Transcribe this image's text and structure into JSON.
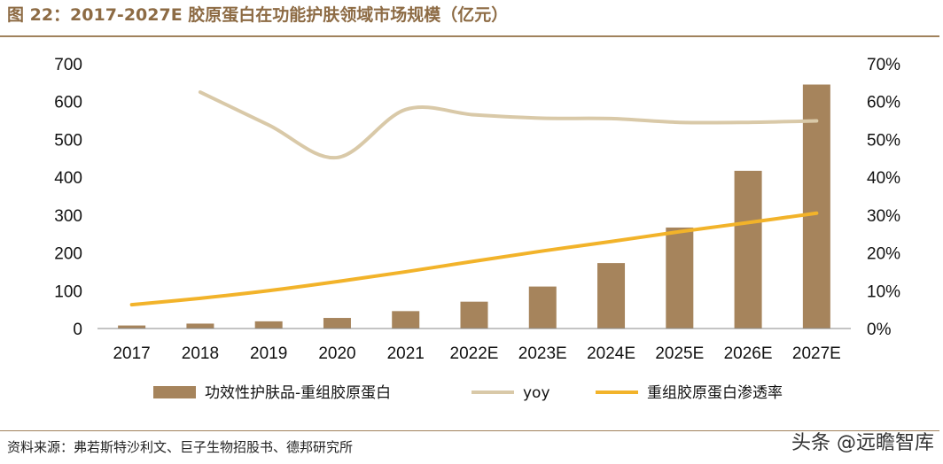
{
  "header": {
    "title": "图 22：2017-2027E 胶原蛋白在功能护肤领域市场规模（亿元）"
  },
  "footer": {
    "source": "资料来源：弗若斯特沙利文、巨子生物招股书、德邦研究所",
    "watermark": "头条 @远瞻智库"
  },
  "chart_data": {
    "type": "bar",
    "categories": [
      "2017",
      "2018",
      "2019",
      "2020",
      "2021",
      "2022E",
      "2023E",
      "2024E",
      "2025E",
      "2026E",
      "2027E"
    ],
    "y_left": {
      "ylim": [
        0,
        700
      ],
      "ticks": [
        "0",
        "100",
        "200",
        "300",
        "400",
        "500",
        "600",
        "700"
      ]
    },
    "y_right": {
      "ylim": [
        0,
        70
      ],
      "ticks": [
        "0%",
        "10%",
        "20%",
        "30%",
        "40%",
        "50%",
        "60%",
        "70%"
      ]
    },
    "grid": false,
    "legend_position": "bottom",
    "series": [
      {
        "name": "功效性护肤品-重组胶原蛋白",
        "type": "bar",
        "axis": "left",
        "color": "#a6845c",
        "values": [
          8,
          13,
          19,
          28,
          46,
          71,
          111,
          173,
          267,
          417,
          645
        ]
      },
      {
        "name": "yoy",
        "type": "line",
        "axis": "right",
        "color": "#d9c9a8",
        "values": [
          null,
          62.5,
          53.8,
          45.2,
          57.9,
          56.5,
          55.6,
          55.5,
          54.5,
          54.5,
          54.9
        ]
      },
      {
        "name": "重组胶原蛋白渗透率",
        "type": "line",
        "axis": "right",
        "color": "#f2b32a",
        "values": [
          6.3,
          8.0,
          10.0,
          12.4,
          15.0,
          17.8,
          20.5,
          23.0,
          25.6,
          28.0,
          30.5
        ]
      }
    ]
  }
}
